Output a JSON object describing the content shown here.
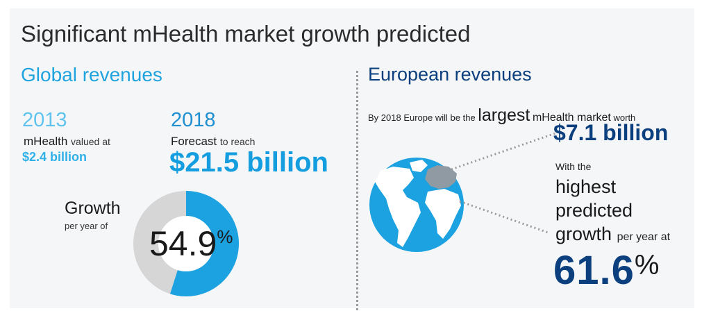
{
  "title": "Significant mHealth market growth predicted",
  "global": {
    "heading": "Global revenues",
    "year_a": "2013",
    "year_a_prefix": "mHealth",
    "year_a_suffix": "valued at",
    "year_a_value": "$2.4 billion",
    "year_b": "2018",
    "year_b_prefix": "Forecast",
    "year_b_suffix": "to reach",
    "year_b_value": "$21.5 billion",
    "growth_label": "Growth",
    "growth_sub": "per year of",
    "growth_value": "54.9",
    "growth_unit": "%",
    "growth_fraction": 0.549
  },
  "europe": {
    "heading": "European revenues",
    "line_part1": "By 2018 Europe will be the",
    "line_big": "largest",
    "line_mid": "mHealth market",
    "line_end": "worth",
    "value": "$7.1 billion",
    "with_the": "With the",
    "highest": "highest",
    "predicted": "predicted",
    "growth_word": "growth",
    "growth_tail": "per year at",
    "growth_value": "61.6",
    "growth_unit": "%"
  },
  "colors": {
    "light_blue": "#1fa3de",
    "dark_blue": "#0b3f7d",
    "donut_grey": "#d6d6d6",
    "globe_blue": "#1ca2e0"
  }
}
